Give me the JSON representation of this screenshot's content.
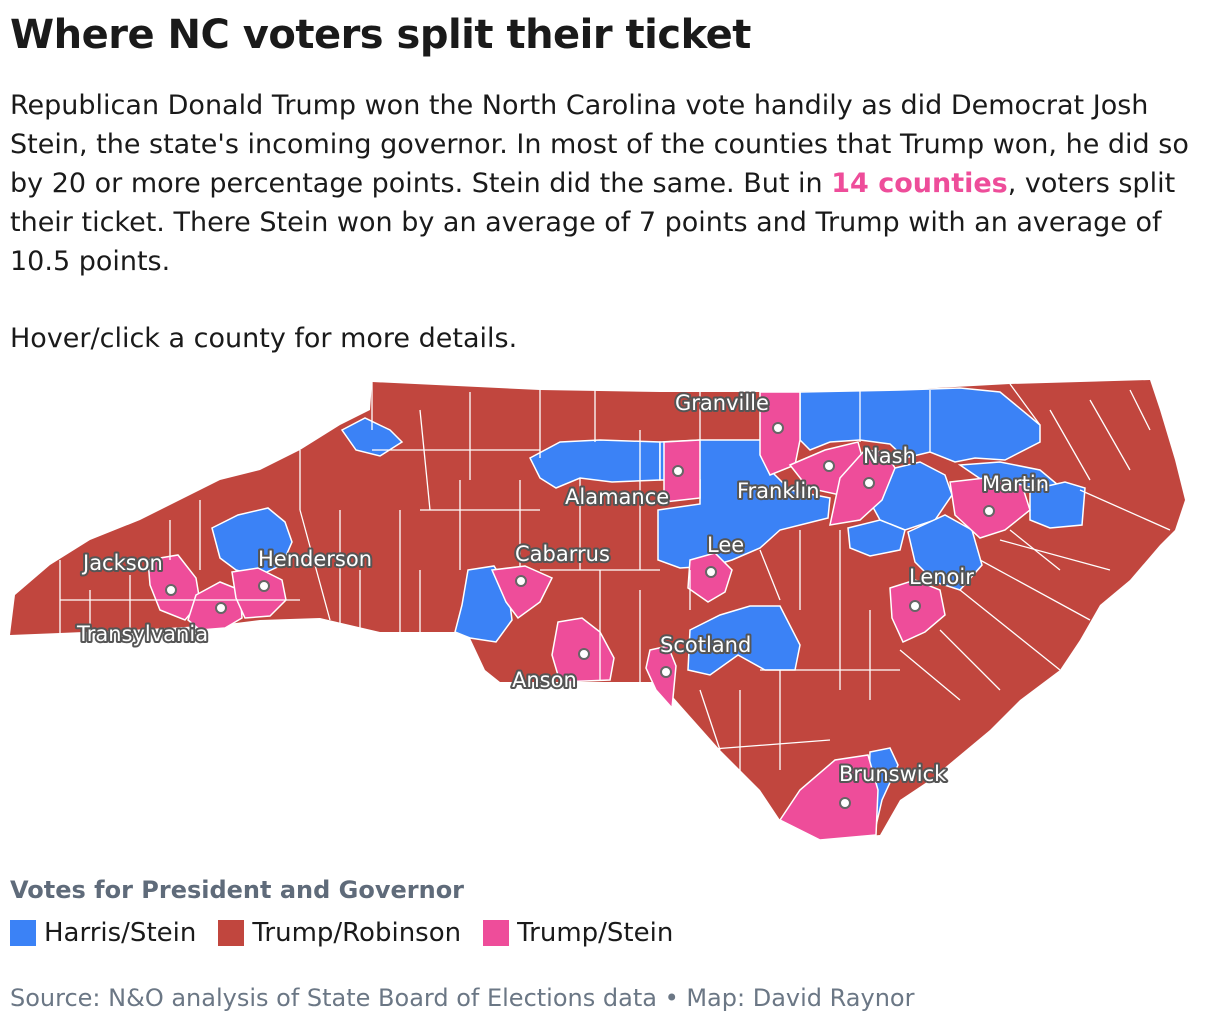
{
  "header": {
    "title": "Where NC voters split their ticket",
    "desc_before": "Republican Donald Trump won the North Carolina vote handily as did Democrat Josh Stein, the state's incoming governor. In most of the counties that Trump won, he did so by 20 or more percentage points. Stein did the same. But in ",
    "desc_highlight": "14 counties",
    "desc_after": ", voters split their ticket. There Stein won by an average of 7 points and Trump with an average of 10.5 points.",
    "hint": "Hover/click a county for more details."
  },
  "map": {
    "colors": {
      "harris_stein": "#3b82f6",
      "trump_robinson": "#c1463e",
      "trump_stein": "#ee4d9a",
      "border": "#ffffff"
    },
    "labeled_counties": [
      "Granville",
      "Nash",
      "Alamance",
      "Franklin",
      "Martin",
      "Jackson",
      "Henderson",
      "Cabarrus",
      "Lee",
      "Lenoir",
      "Transylvania",
      "Scotland",
      "Anson",
      "Brunswick"
    ]
  },
  "legend": {
    "title": "Votes for President and Governor",
    "items": [
      {
        "label": "Harris/Stein",
        "color": "#3b82f6"
      },
      {
        "label": "Trump/Robinson",
        "color": "#c1463e"
      },
      {
        "label": "Trump/Stein",
        "color": "#ee4d9a"
      }
    ]
  },
  "footer": {
    "source": "Source: N&O analysis of State Board of Elections data • Map: David Raynor"
  }
}
